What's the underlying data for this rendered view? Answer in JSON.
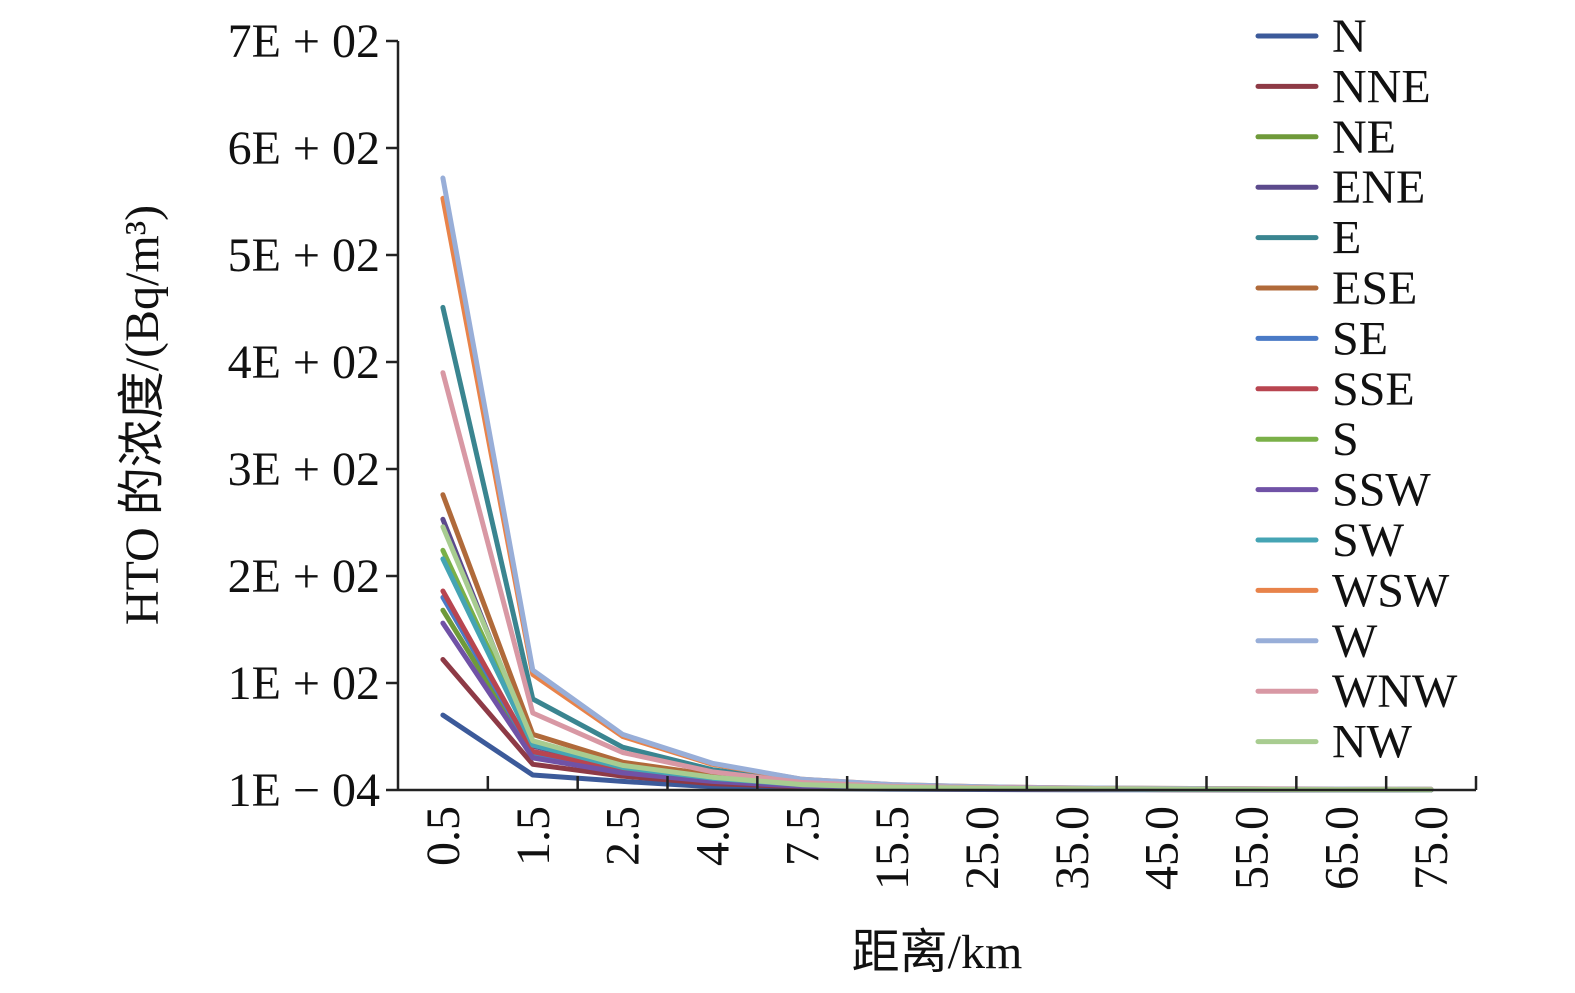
{
  "chart_data": {
    "type": "line",
    "title": "",
    "xlabel": "距离/km",
    "ylabel": "HTO 的浓度/(Bq/m³)",
    "categories": [
      "0.5",
      "1.5",
      "2.5",
      "4.0",
      "7.5",
      "15.5",
      "25.0",
      "35.0",
      "45.0",
      "55.0",
      "65.0",
      "75.0"
    ],
    "yticks": [
      "1E − 04",
      "1E + 02",
      "2E + 02",
      "3E + 02",
      "4E + 02",
      "5E + 02",
      "6E + 02",
      "7E + 02"
    ],
    "ylim": [
      0,
      700
    ],
    "grid": false,
    "legend_position": "right",
    "series": [
      {
        "name": "N",
        "color": "#3c5a9a",
        "values": [
          70,
          14,
          8,
          3,
          1.5,
          0.8,
          0.5,
          0.3,
          0.2,
          0.15,
          0.1,
          0.1
        ]
      },
      {
        "name": "NNE",
        "color": "#8e3a46",
        "values": [
          122,
          24,
          13,
          6,
          3,
          1.5,
          0.9,
          0.6,
          0.4,
          0.3,
          0.2,
          0.2
        ]
      },
      {
        "name": "NE",
        "color": "#6f9a3a",
        "values": [
          168,
          32,
          17,
          9,
          4,
          2,
          1.2,
          0.8,
          0.5,
          0.4,
          0.3,
          0.2
        ]
      },
      {
        "name": "ENE",
        "color": "#5c4a8c",
        "values": [
          253,
          41,
          21,
          11,
          5,
          2.5,
          1.5,
          1,
          0.7,
          0.5,
          0.4,
          0.3
        ]
      },
      {
        "name": "E",
        "color": "#3a8590",
        "values": [
          451,
          85,
          40,
          19,
          8,
          4,
          2.5,
          1.7,
          1.2,
          0.9,
          0.7,
          0.6
        ]
      },
      {
        "name": "ESE",
        "color": "#b06a3a",
        "values": [
          276,
          52,
          26,
          14,
          6,
          3,
          1.9,
          1.3,
          0.9,
          0.7,
          0.5,
          0.4
        ]
      },
      {
        "name": "SE",
        "color": "#4a7ac6",
        "values": [
          180,
          35,
          18,
          9,
          4,
          2,
          1.2,
          0.8,
          0.6,
          0.4,
          0.3,
          0.3
        ]
      },
      {
        "name": "SSE",
        "color": "#b84550",
        "values": [
          186,
          36,
          19,
          10,
          4.5,
          2.2,
          1.3,
          0.9,
          0.6,
          0.5,
          0.4,
          0.3
        ]
      },
      {
        "name": "S",
        "color": "#7ab048",
        "values": [
          224,
          43,
          22,
          12,
          5,
          2.6,
          1.6,
          1.1,
          0.8,
          0.6,
          0.4,
          0.3
        ]
      },
      {
        "name": "SSW",
        "color": "#7052a6",
        "values": [
          156,
          30,
          16,
          8,
          3.5,
          1.8,
          1.1,
          0.7,
          0.5,
          0.4,
          0.3,
          0.2
        ]
      },
      {
        "name": "SW",
        "color": "#45a4b4",
        "values": [
          216,
          42,
          21,
          11,
          5,
          2.5,
          1.5,
          1,
          0.7,
          0.5,
          0.4,
          0.3
        ]
      },
      {
        "name": "WSW",
        "color": "#e8834a",
        "values": [
          553,
          108,
          50,
          24,
          10,
          5,
          3,
          2,
          1.5,
          1.1,
          0.9,
          0.7
        ]
      },
      {
        "name": "W",
        "color": "#98aed8",
        "values": [
          572,
          112,
          52,
          25,
          10,
          5,
          3,
          2,
          1.5,
          1.1,
          0.9,
          0.7
        ]
      },
      {
        "name": "WNW",
        "color": "#d898a4",
        "values": [
          390,
          72,
          35,
          17,
          7,
          3.5,
          2.2,
          1.5,
          1,
          0.8,
          0.6,
          0.5
        ]
      },
      {
        "name": "NW",
        "color": "#a8cc90",
        "values": [
          246,
          46,
          23,
          12,
          5,
          2.6,
          1.6,
          1.1,
          0.8,
          0.6,
          0.4,
          0.3
        ]
      }
    ]
  }
}
